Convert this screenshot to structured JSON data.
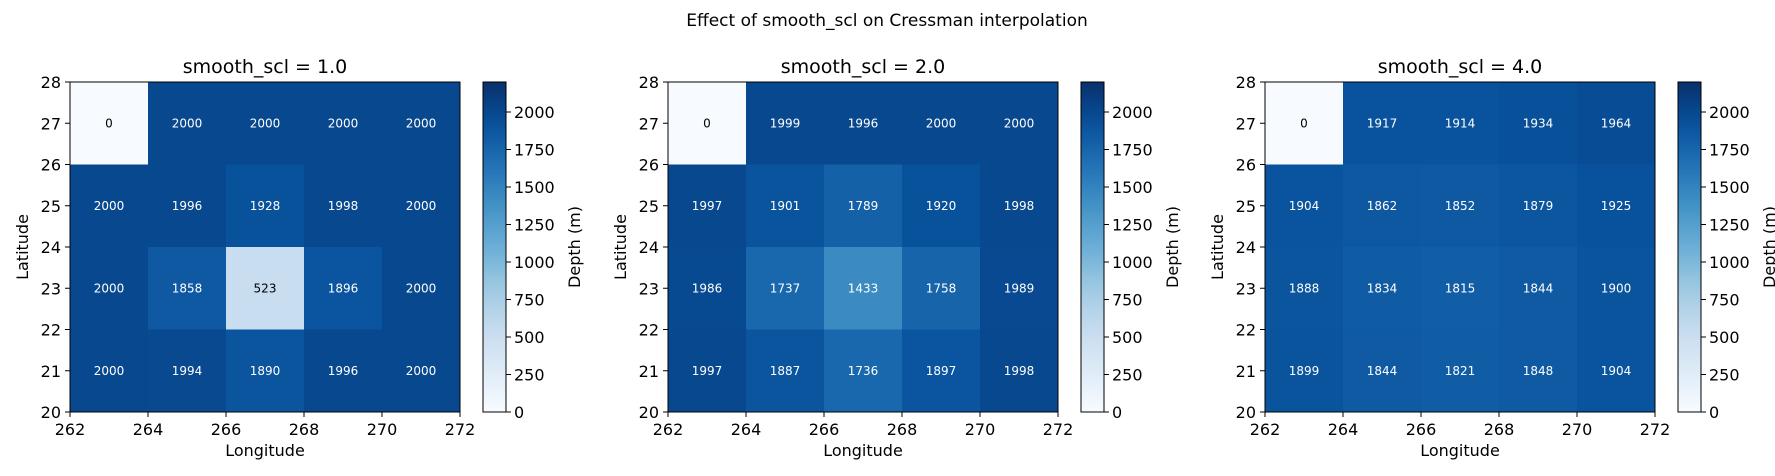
{
  "figure": {
    "title": "Effect of smooth_scl on Cressman interpolation"
  },
  "chart_data": [
    {
      "type": "heatmap",
      "title": "smooth_scl = 1.0",
      "xlabel": "Longitude",
      "ylabel": "Latitude",
      "colorbar_label": "Depth (m)",
      "colormap": "Blues",
      "x_edges": [
        262,
        264,
        266,
        268,
        270,
        272
      ],
      "y_edges": [
        20,
        22,
        24,
        26,
        28
      ],
      "xticks": [
        262,
        264,
        266,
        268,
        270,
        272
      ],
      "yticks": [
        20,
        21,
        22,
        23,
        24,
        25,
        26,
        27,
        28
      ],
      "xlim": [
        262,
        272
      ],
      "ylim": [
        20,
        28
      ],
      "vmin": 0,
      "vmax": 2200,
      "colorbar_ticks": [
        0,
        250,
        500,
        750,
        1000,
        1250,
        1500,
        1750,
        2000
      ],
      "rows_top_to_bottom": [
        [
          0,
          2000,
          2000,
          2000,
          2000
        ],
        [
          2000,
          1996,
          1928,
          1998,
          2000
        ],
        [
          2000,
          1858,
          523,
          1896,
          2000
        ],
        [
          2000,
          1994,
          1890,
          1996,
          2000
        ]
      ]
    },
    {
      "type": "heatmap",
      "title": "smooth_scl = 2.0",
      "xlabel": "Longitude",
      "ylabel": "Latitude",
      "colorbar_label": "Depth (m)",
      "colormap": "Blues",
      "x_edges": [
        262,
        264,
        266,
        268,
        270,
        272
      ],
      "y_edges": [
        20,
        22,
        24,
        26,
        28
      ],
      "xticks": [
        262,
        264,
        266,
        268,
        270,
        272
      ],
      "yticks": [
        20,
        21,
        22,
        23,
        24,
        25,
        26,
        27,
        28
      ],
      "xlim": [
        262,
        272
      ],
      "ylim": [
        20,
        28
      ],
      "vmin": 0,
      "vmax": 2200,
      "colorbar_ticks": [
        0,
        250,
        500,
        750,
        1000,
        1250,
        1500,
        1750,
        2000
      ],
      "rows_top_to_bottom": [
        [
          0,
          1999,
          1996,
          2000,
          2000
        ],
        [
          1997,
          1901,
          1789,
          1920,
          1998
        ],
        [
          1986,
          1737,
          1433,
          1758,
          1989
        ],
        [
          1997,
          1887,
          1736,
          1897,
          1998
        ]
      ]
    },
    {
      "type": "heatmap",
      "title": "smooth_scl = 4.0",
      "xlabel": "Longitude",
      "ylabel": "Latitude",
      "colorbar_label": "Depth (m)",
      "colormap": "Blues",
      "x_edges": [
        262,
        264,
        266,
        268,
        270,
        272
      ],
      "y_edges": [
        20,
        22,
        24,
        26,
        28
      ],
      "xticks": [
        262,
        264,
        266,
        268,
        270,
        272
      ],
      "yticks": [
        20,
        21,
        22,
        23,
        24,
        25,
        26,
        27,
        28
      ],
      "xlim": [
        262,
        272
      ],
      "ylim": [
        20,
        28
      ],
      "vmin": 0,
      "vmax": 2200,
      "colorbar_ticks": [
        0,
        250,
        500,
        750,
        1000,
        1250,
        1500,
        1750,
        2000
      ],
      "rows_top_to_bottom": [
        [
          0,
          1917,
          1914,
          1934,
          1964
        ],
        [
          1904,
          1862,
          1852,
          1879,
          1925
        ],
        [
          1888,
          1834,
          1815,
          1844,
          1900
        ],
        [
          1899,
          1844,
          1821,
          1848,
          1904
        ]
      ]
    }
  ]
}
